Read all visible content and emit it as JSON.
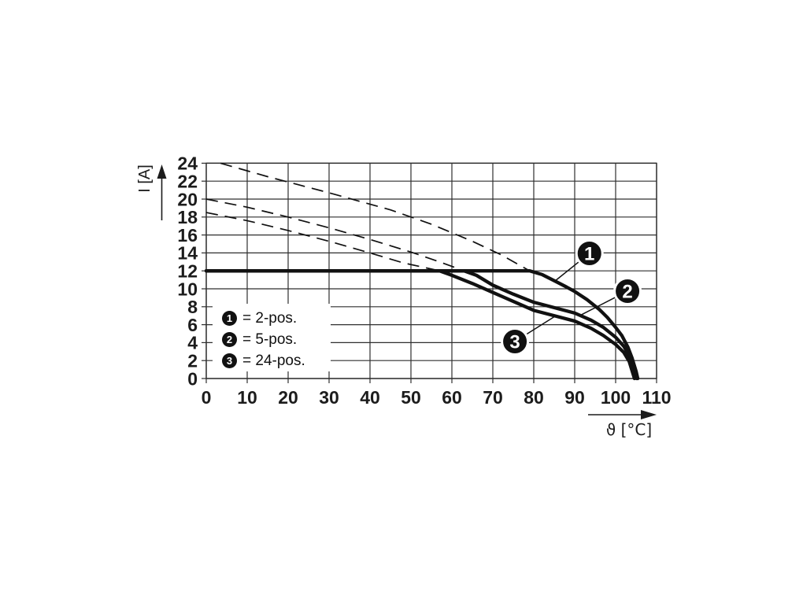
{
  "chart_data": {
    "type": "line",
    "title": "",
    "xlabel": "ϑ [°C]",
    "ylabel": "I [A]",
    "xlim": [
      0,
      110
    ],
    "ylim": [
      0,
      24
    ],
    "x_tick_step": 10,
    "y_tick_step": 2,
    "grid": true,
    "xticks": [
      "0",
      "10",
      "20",
      "30",
      "40",
      "50",
      "60",
      "70",
      "80",
      "90",
      "100",
      "110"
    ],
    "yticks": [
      "0",
      "2",
      "4",
      "6",
      "8",
      "10",
      "12",
      "14",
      "16",
      "18",
      "20",
      "22",
      "24"
    ],
    "series": [
      {
        "name": "2-pos.",
        "legend_marker": "1",
        "style": "solid",
        "points": [
          [
            0,
            12
          ],
          [
            79,
            12
          ],
          [
            82,
            11.6
          ],
          [
            85,
            10.9
          ],
          [
            88,
            10.2
          ],
          [
            90,
            9.7
          ],
          [
            93,
            8.8
          ],
          [
            96,
            7.7
          ],
          [
            98,
            6.8
          ],
          [
            100,
            5.7
          ],
          [
            101.5,
            4.8
          ],
          [
            103,
            3.5
          ],
          [
            104,
            2.3
          ],
          [
            105,
            0.8
          ],
          [
            105.4,
            0
          ]
        ]
      },
      {
        "name": "5-pos.",
        "legend_marker": "2",
        "style": "solid",
        "points": [
          [
            0,
            12
          ],
          [
            63,
            12
          ],
          [
            66,
            11.5
          ],
          [
            70,
            10.4
          ],
          [
            75,
            9.4
          ],
          [
            80,
            8.5
          ],
          [
            85,
            7.9
          ],
          [
            90,
            7.3
          ],
          [
            94,
            6.5
          ],
          [
            97,
            5.7
          ],
          [
            100,
            4.6
          ],
          [
            102,
            3.6
          ],
          [
            103.5,
            2.4
          ],
          [
            104.8,
            0.8
          ],
          [
            105.1,
            0
          ]
        ]
      },
      {
        "name": "24-pos.",
        "legend_marker": "3",
        "style": "solid",
        "points": [
          [
            0,
            12
          ],
          [
            57,
            12
          ],
          [
            60,
            11.5
          ],
          [
            65,
            10.6
          ],
          [
            70,
            9.6
          ],
          [
            75,
            8.6
          ],
          [
            80,
            7.6
          ],
          [
            85,
            7.0
          ],
          [
            90,
            6.4
          ],
          [
            94,
            5.6
          ],
          [
            97,
            4.8
          ],
          [
            100,
            3.8
          ],
          [
            102,
            2.9
          ],
          [
            103.3,
            1.9
          ],
          [
            104.6,
            0
          ]
        ]
      },
      {
        "name": "dashed-guide-1",
        "style": "dashed",
        "points": [
          [
            3.5,
            24
          ],
          [
            15,
            22.5
          ],
          [
            30,
            20.7
          ],
          [
            45,
            18.8
          ],
          [
            55,
            17.2
          ],
          [
            65,
            15.3
          ],
          [
            72,
            13.8
          ],
          [
            79,
            12
          ]
        ]
      },
      {
        "name": "dashed-guide-2",
        "style": "dashed",
        "points": [
          [
            0,
            20
          ],
          [
            10,
            19.1
          ],
          [
            20,
            18.0
          ],
          [
            30,
            16.8
          ],
          [
            40,
            15.5
          ],
          [
            50,
            14.1
          ],
          [
            57,
            13.0
          ],
          [
            63,
            12
          ]
        ]
      },
      {
        "name": "dashed-guide-3",
        "style": "dashed",
        "points": [
          [
            0,
            18.5
          ],
          [
            10,
            17.6
          ],
          [
            20,
            16.5
          ],
          [
            30,
            15.3
          ],
          [
            40,
            14.0
          ],
          [
            48,
            12.9
          ],
          [
            53,
            12.4
          ],
          [
            57,
            12
          ]
        ]
      }
    ],
    "badges": [
      {
        "label": "1",
        "center": [
          93.6,
          13.95
        ],
        "target": [
          85.0,
          10.8
        ]
      },
      {
        "label": "2",
        "center": [
          102.9,
          9.74
        ],
        "target": [
          91.6,
          7.1
        ]
      },
      {
        "label": "3",
        "center": [
          75.4,
          4.12
        ],
        "target": [
          85.4,
          7.0
        ]
      }
    ],
    "legend_position": "inside-lower-left"
  },
  "legend": {
    "items": [
      {
        "marker": "1",
        "label": "= 2-pos."
      },
      {
        "marker": "2",
        "label": "= 5-pos."
      },
      {
        "marker": "3",
        "label": "= 24-pos."
      }
    ]
  },
  "axes": {
    "y_title": "I [A]",
    "x_title": "ϑ [°C]"
  },
  "colors": {
    "ink": "#1c1c1c",
    "grid": "#2e2e2e",
    "curve": "#111111",
    "background": "#ffffff",
    "badge_fill": "#111111",
    "badge_text": "#ffffff"
  }
}
